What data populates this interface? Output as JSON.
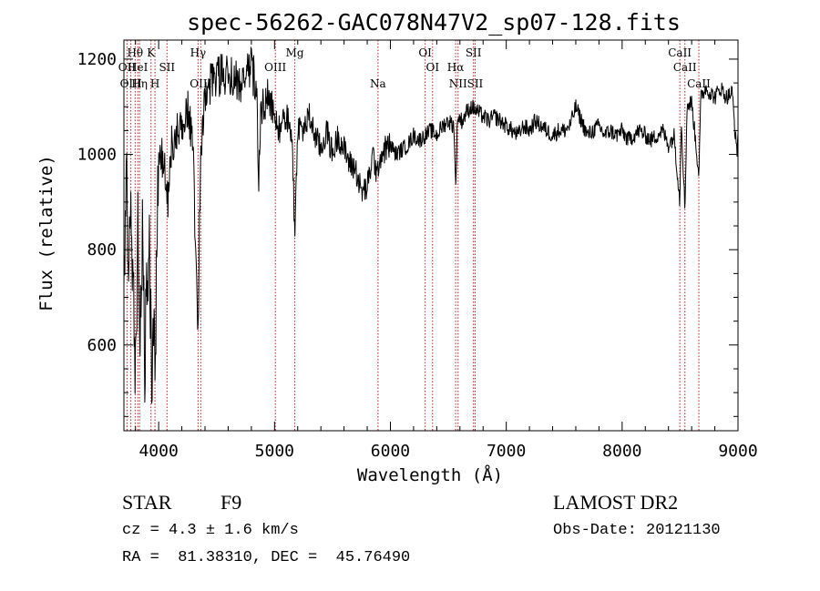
{
  "chart_data": {
    "type": "line",
    "title": "spec-56262-GAC078N47V2_sp07-128.fits",
    "xlabel": "Wavelength (Å)",
    "ylabel": "Flux (relative)",
    "xlim": [
      3700,
      9000
    ],
    "ylim": [
      420,
      1240
    ],
    "x_ticks": [
      4000,
      5000,
      6000,
      7000,
      8000,
      9000
    ],
    "x_tick_labels": [
      "4000",
      "5000",
      "6000",
      "7000",
      "8000",
      "9000"
    ],
    "y_ticks": [
      600,
      800,
      1000,
      1200
    ],
    "y_tick_labels": [
      "600",
      "800",
      "1000",
      "1200"
    ],
    "line_color": "#000000",
    "marker_color": "#b22222",
    "spectrum_anchors": [
      [
        3700,
        640
      ],
      [
        3720,
        980
      ],
      [
        3740,
        760
      ],
      [
        3760,
        860
      ],
      [
        3780,
        700
      ],
      [
        3800,
        520
      ],
      [
        3820,
        860
      ],
      [
        3840,
        620
      ],
      [
        3860,
        820
      ],
      [
        3880,
        560
      ],
      [
        3900,
        750
      ],
      [
        3920,
        800
      ],
      [
        3940,
        520
      ],
      [
        3960,
        700
      ],
      [
        3970,
        450
      ],
      [
        3985,
        840
      ],
      [
        4000,
        960
      ],
      [
        4020,
        1000
      ],
      [
        4050,
        980
      ],
      [
        4080,
        900
      ],
      [
        4100,
        1010
      ],
      [
        4150,
        1040
      ],
      [
        4200,
        1070
      ],
      [
        4250,
        1100
      ],
      [
        4300,
        1020
      ],
      [
        4320,
        760
      ],
      [
        4340,
        620
      ],
      [
        4360,
        1000
      ],
      [
        4400,
        1110
      ],
      [
        4450,
        1150
      ],
      [
        4500,
        1160
      ],
      [
        4550,
        1170
      ],
      [
        4600,
        1160
      ],
      [
        4650,
        1160
      ],
      [
        4700,
        1150
      ],
      [
        4750,
        1170
      ],
      [
        4800,
        1180
      ],
      [
        4850,
        1140
      ],
      [
        4861,
        900
      ],
      [
        4880,
        1100
      ],
      [
        4950,
        1120
      ],
      [
        5000,
        1070
      ],
      [
        5050,
        1050
      ],
      [
        5100,
        1080
      ],
      [
        5150,
        1050
      ],
      [
        5175,
        820
      ],
      [
        5200,
        1060
      ],
      [
        5250,
        1050
      ],
      [
        5300,
        1080
      ],
      [
        5350,
        1040
      ],
      [
        5400,
        1010
      ],
      [
        5450,
        1050
      ],
      [
        5500,
        1000
      ],
      [
        5550,
        1040
      ],
      [
        5600,
        1010
      ],
      [
        5650,
        980
      ],
      [
        5700,
        970
      ],
      [
        5750,
        920
      ],
      [
        5800,
        930
      ],
      [
        5850,
        1000
      ],
      [
        5890,
        950
      ],
      [
        5900,
        990
      ],
      [
        5950,
        1010
      ],
      [
        6000,
        1020
      ],
      [
        6050,
        1000
      ],
      [
        6100,
        1010
      ],
      [
        6150,
        1020
      ],
      [
        6200,
        1040
      ],
      [
        6250,
        1030
      ],
      [
        6300,
        1040
      ],
      [
        6350,
        1050
      ],
      [
        6400,
        1040
      ],
      [
        6450,
        1060
      ],
      [
        6500,
        1070
      ],
      [
        6550,
        1060
      ],
      [
        6563,
        920
      ],
      [
        6580,
        1080
      ],
      [
        6620,
        1070
      ],
      [
        6660,
        1090
      ],
      [
        6700,
        1100
      ],
      [
        6750,
        1090
      ],
      [
        6800,
        1080
      ],
      [
        6850,
        1070
      ],
      [
        6900,
        1080
      ],
      [
        6950,
        1070
      ],
      [
        7000,
        1060
      ],
      [
        7050,
        1050
      ],
      [
        7100,
        1040
      ],
      [
        7150,
        1060
      ],
      [
        7200,
        1050
      ],
      [
        7250,
        1070
      ],
      [
        7300,
        1060
      ],
      [
        7350,
        1050
      ],
      [
        7400,
        1040
      ],
      [
        7450,
        1050
      ],
      [
        7500,
        1050
      ],
      [
        7550,
        1060
      ],
      [
        7600,
        1100
      ],
      [
        7650,
        1070
      ],
      [
        7700,
        1040
      ],
      [
        7750,
        1050
      ],
      [
        7800,
        1060
      ],
      [
        7850,
        1040
      ],
      [
        7900,
        1050
      ],
      [
        7950,
        1040
      ],
      [
        8000,
        1050
      ],
      [
        8050,
        1030
      ],
      [
        8100,
        1040
      ],
      [
        8150,
        1050
      ],
      [
        8200,
        1040
      ],
      [
        8250,
        1030
      ],
      [
        8300,
        1040
      ],
      [
        8350,
        1050
      ],
      [
        8400,
        1020
      ],
      [
        8450,
        1040
      ],
      [
        8498,
        900
      ],
      [
        8510,
        1080
      ],
      [
        8542,
        880
      ],
      [
        8560,
        1100
      ],
      [
        8600,
        1110
      ],
      [
        8662,
        960
      ],
      [
        8680,
        1120
      ],
      [
        8720,
        1140
      ],
      [
        8760,
        1130
      ],
      [
        8800,
        1120
      ],
      [
        8850,
        1140
      ],
      [
        8900,
        1120
      ],
      [
        8950,
        1130
      ],
      [
        8990,
        1000
      ],
      [
        9000,
        1040
      ]
    ],
    "line_markers": [
      {
        "label": "Hθ",
        "x": 3797,
        "row": 1
      },
      {
        "label": "OII",
        "x": 3727,
        "row": 2
      },
      {
        "label": "OIII",
        "x": 3760,
        "row": 3
      },
      {
        "label": "K",
        "x": 3934,
        "row": 1
      },
      {
        "label": "HeI",
        "x": 3820,
        "row": 2
      },
      {
        "label": "SII",
        "x": 4072,
        "row": 2
      },
      {
        "label": "Hη",
        "x": 3835,
        "row": 3
      },
      {
        "label": "H",
        "x": 3968,
        "row": 3
      },
      {
        "label": "Hγ",
        "x": 4340,
        "row": 1
      },
      {
        "label": "OIII",
        "x": 4363,
        "row": 3
      },
      {
        "label": "Mg",
        "x": 5175,
        "row": 1
      },
      {
        "label": "OIII",
        "x": 5007,
        "row": 2
      },
      {
        "label": "Na",
        "x": 5893,
        "row": 3
      },
      {
        "label": "OI",
        "x": 6300,
        "row": 1
      },
      {
        "label": "OI",
        "x": 6364,
        "row": 2
      },
      {
        "label": "SII",
        "x": 6717,
        "row": 1
      },
      {
        "label": "Hα",
        "x": 6563,
        "row": 2
      },
      {
        "label": "NII",
        "x": 6584,
        "row": 3
      },
      {
        "label": "SII",
        "x": 6731,
        "row": 3
      },
      {
        "label": "CaII",
        "x": 8498,
        "row": 1
      },
      {
        "label": "CaII",
        "x": 8542,
        "row": 2
      },
      {
        "label": "CaII",
        "x": 8662,
        "row": 3
      }
    ]
  },
  "info": {
    "object_class": "STAR",
    "subclass": "F9",
    "survey": "LAMOST DR2",
    "cz": "cz = 4.3 ± 1.6 km/s",
    "obs_date": "Obs-Date: 20121130",
    "coords": "RA =  81.38310, DEC =  45.76490"
  }
}
